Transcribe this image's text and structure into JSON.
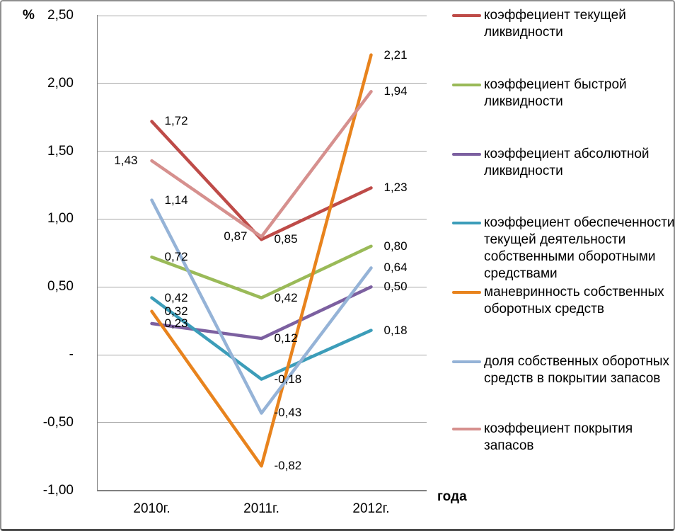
{
  "chart_data": {
    "type": "line",
    "title": "",
    "ylabel": "%",
    "xlabel": "года",
    "categories": [
      "2010г.",
      "2011г.",
      "2012г."
    ],
    "ylim": [
      -1.0,
      2.5
    ],
    "grid": true,
    "legend_position": "right",
    "y_tick_labels": [
      "2,50",
      "2,00",
      "1,50",
      "1,00",
      "0,50",
      "-",
      "-0,50",
      "-1,00"
    ],
    "y_tick_values": [
      2.5,
      2.0,
      1.5,
      1.0,
      0.5,
      0.0,
      -0.5,
      -1.0
    ],
    "axis_color": "#808080",
    "grid_color": "#a6a6a6",
    "series": [
      {
        "name": "коэффециент текущей ликвидности",
        "name_lines": [
          "коэффециент текущей",
          "ликвидности"
        ],
        "color": "#be4b48",
        "values": [
          1.72,
          0.85,
          1.23
        ],
        "labels": [
          "1,72",
          "0,85",
          "1,23"
        ],
        "label_side": [
          "right",
          "right",
          "right"
        ]
      },
      {
        "name": "коэффециент быстрой ликвидности",
        "name_lines": [
          "коэффециент быстрой",
          "ликвидности"
        ],
        "color": "#9aba58",
        "values": [
          0.72,
          0.42,
          0.8
        ],
        "labels": [
          "0,72",
          "0,42",
          "0,80"
        ],
        "label_side": [
          "right",
          "right",
          "right"
        ]
      },
      {
        "name": "коэффециент абсолютной ликвидности",
        "name_lines": [
          "коэффециент абсолютной",
          "ликвидности"
        ],
        "color": "#7c60a0",
        "values": [
          0.23,
          0.12,
          0.5
        ],
        "labels": [
          "0,23",
          "0,12",
          "0,50"
        ],
        "label_side": [
          "right",
          "right",
          "right"
        ]
      },
      {
        "name": "коэффециент обеспеченности текущей деятельности собственными оборотными средствами",
        "name_lines": [
          "коэффециент обеспеченности",
          "текущей деятельности",
          "собственными оборотными",
          "средствами"
        ],
        "color": "#3c9db9",
        "values": [
          0.42,
          -0.18,
          0.18
        ],
        "labels": [
          "0,42",
          "-0,18",
          "0,18"
        ],
        "label_side": [
          "right",
          "right",
          "right"
        ]
      },
      {
        "name": "маневринность собственных оборотных средств",
        "name_lines": [
          "маневринность собственных",
          "оборотных средств"
        ],
        "color": "#e8831d",
        "values": [
          0.32,
          -0.82,
          2.21
        ],
        "labels": [
          "0,32",
          "-0,82",
          "2,21"
        ],
        "label_side": [
          "right",
          "right",
          "right"
        ]
      },
      {
        "name": "доля собственных оборотных средств в покрытии запасов",
        "name_lines": [
          "доля собственных оборотных",
          "средств в покрытии запасов"
        ],
        "color": "#95b3d7",
        "values": [
          1.14,
          -0.43,
          0.64
        ],
        "labels": [
          "1,14",
          "-0,43",
          "0,64"
        ],
        "label_side": [
          "right",
          "right",
          "right"
        ]
      },
      {
        "name": "коэффециент покрытия запасов",
        "name_lines": [
          "коэффециент покрытия",
          "запасов"
        ],
        "color": "#d6908e",
        "values": [
          1.43,
          0.87,
          1.94
        ],
        "labels": [
          "1,43",
          "0,87",
          "1,94"
        ],
        "label_side": [
          "left",
          "left",
          "right"
        ]
      }
    ]
  }
}
